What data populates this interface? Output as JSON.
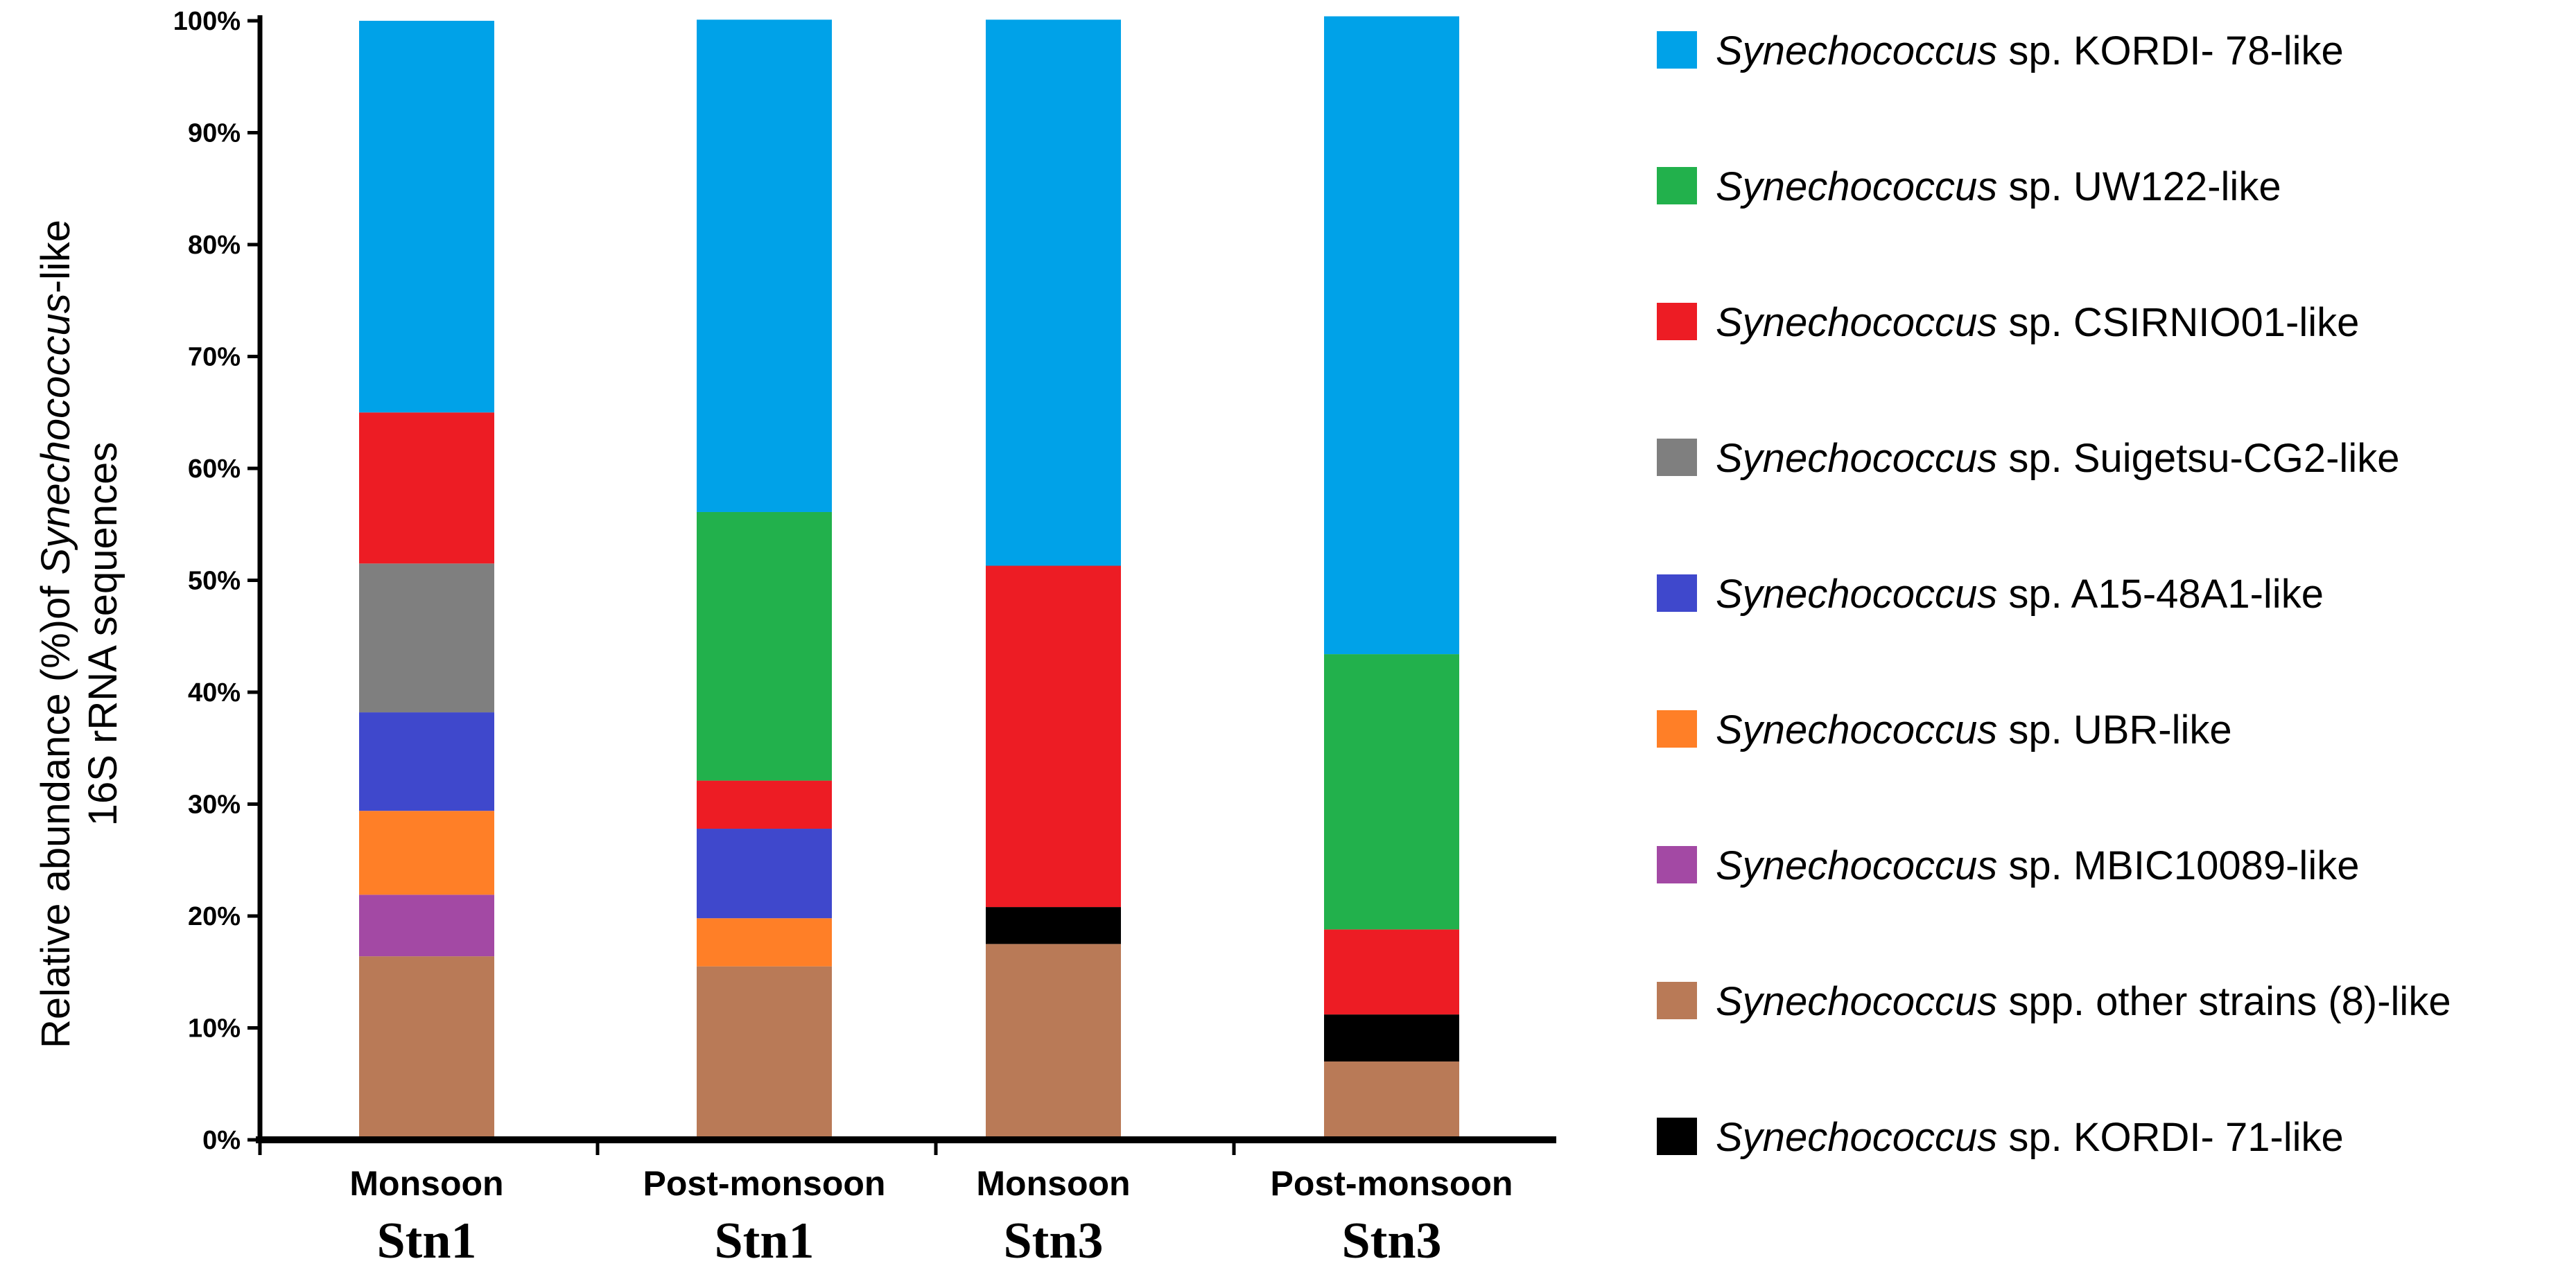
{
  "chart_data": {
    "type": "bar",
    "stacked": true,
    "ylabel_line1_prefix": "Relative abundance (%)of ",
    "ylabel_line1_italic": "Synechococcus",
    "ylabel_line1_suffix": "-like",
    "ylabel_line2": "16S rRNA sequences",
    "xlabel": "",
    "ylim": [
      0,
      100
    ],
    "yticks": [
      "0%",
      "10%",
      "20%",
      "30%",
      "40%",
      "50%",
      "60%",
      "70%",
      "80%",
      "90%",
      "100%"
    ],
    "categories": [
      {
        "season": "Monsoon",
        "station": "Stn1"
      },
      {
        "season": "Post-monsoon",
        "station": "Stn1"
      },
      {
        "season": "Monsoon",
        "station": "Stn3"
      },
      {
        "season": "Post-monsoon",
        "station": "Stn3"
      }
    ],
    "legend_position": "right",
    "series": [
      {
        "genus": "Synechococcus",
        "rest": " sp. KORDI- 78-like",
        "color": "#00a2e8",
        "values": [
          35.0,
          44.0,
          48.8,
          57.0
        ]
      },
      {
        "genus": "Synechococcus",
        "rest": " sp. UW122-like",
        "color": "#22b14c",
        "values": [
          0,
          24.0,
          0,
          24.6
        ]
      },
      {
        "genus": "Synechococcus",
        "rest": " sp. CSIRNIO01-like",
        "color": "#ed1c24",
        "values": [
          13.5,
          4.3,
          30.5,
          7.6
        ]
      },
      {
        "genus": "Synechococcus",
        "rest": " sp. Suigetsu-CG2-like",
        "color": "#7f7f7f",
        "values": [
          13.3,
          0,
          0,
          0
        ]
      },
      {
        "genus": "Synechococcus",
        "rest": " sp. A15-48A1-like",
        "color": "#3f48cc",
        "values": [
          8.8,
          8.0,
          0,
          0
        ]
      },
      {
        "genus": "Synechococcus",
        "rest": " sp. UBR-like",
        "color": "#ff7f27",
        "values": [
          7.5,
          4.3,
          0,
          0
        ]
      },
      {
        "genus": "Synechococcus",
        "rest": " sp. MBIC10089-like",
        "color": "#a349a4",
        "values": [
          5.5,
          0,
          0,
          0
        ]
      },
      {
        "genus": "Synechococcus",
        "rest": " spp. other strains (8)-like",
        "color": "#b97a57",
        "values": [
          16.4,
          15.5,
          17.5,
          7.0
        ]
      },
      {
        "genus": "Synechococcus",
        "rest": " sp. KORDI- 71-like",
        "color": "#000000",
        "values": [
          0,
          0,
          3.3,
          4.2
        ]
      }
    ],
    "stack_order_bottom_to_top": [
      7,
      8,
      6,
      5,
      4,
      3,
      2,
      1,
      0
    ]
  }
}
